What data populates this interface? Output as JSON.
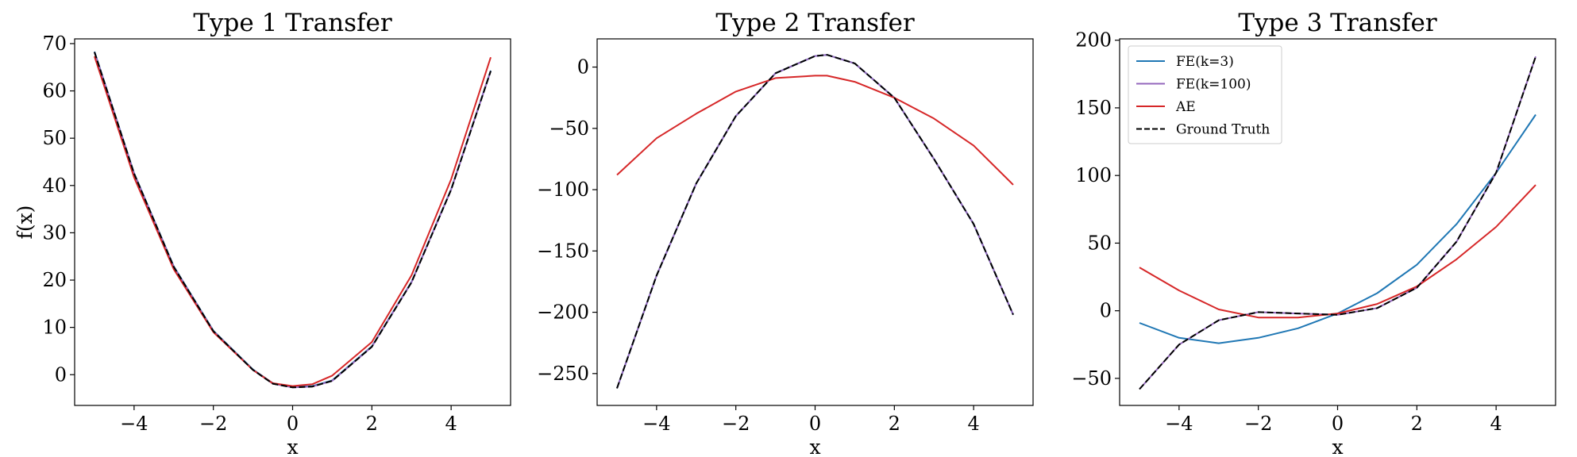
{
  "chart_data": [
    {
      "type": "line",
      "title": "Type 1 Transfer",
      "xlabel": "x",
      "ylabel": "f(x)",
      "xlim": [
        -5.5,
        5.5
      ],
      "ylim": [
        -6.5,
        71
      ],
      "xticks": [
        -4,
        -2,
        0,
        2,
        4
      ],
      "xtick_labels": [
        "−4",
        "−2",
        "0",
        "2",
        "4"
      ],
      "yticks": [
        0,
        10,
        20,
        30,
        40,
        50,
        60,
        70
      ],
      "ytick_labels": [
        "0",
        "10",
        "20",
        "30",
        "40",
        "50",
        "60",
        "70"
      ],
      "x": [
        -5,
        -4,
        -3,
        -2,
        -1,
        -0.5,
        0,
        0.5,
        1,
        2,
        3,
        4,
        5
      ],
      "series": [
        {
          "name": "FE(k=3)",
          "color": "#1f77b4",
          "dashed": false,
          "values": [
            68.3,
            42.6,
            22.9,
            9.3,
            1.1,
            -1.8,
            -2.6,
            -2.4,
            -1.2,
            6.0,
            19.6,
            39.2,
            64.3
          ]
        },
        {
          "name": "FE(k=100)",
          "color": "#9467bd",
          "dashed": false,
          "values": [
            68.2,
            42.5,
            22.8,
            9.2,
            1.0,
            -1.9,
            -2.7,
            -2.5,
            -1.3,
            5.9,
            19.5,
            39.1,
            64.2
          ]
        },
        {
          "name": "AE",
          "color": "#d62728",
          "dashed": false,
          "values": [
            67.3,
            41.7,
            22.3,
            9.0,
            1.0,
            -1.8,
            -2.4,
            -2.0,
            -0.2,
            6.9,
            21.0,
            41.3,
            67.1
          ]
        },
        {
          "name": "Ground Truth",
          "color": "#000000",
          "dashed": true,
          "values": [
            68.2,
            42.5,
            22.8,
            9.2,
            1.0,
            -1.9,
            -2.7,
            -2.5,
            -1.3,
            5.9,
            19.5,
            39.1,
            64.2
          ]
        }
      ],
      "legend": null
    },
    {
      "type": "line",
      "title": "Type 2 Transfer",
      "xlabel": "x",
      "ylabel": "",
      "xlim": [
        -5.5,
        5.5
      ],
      "ylim": [
        -276,
        23
      ],
      "xticks": [
        -4,
        -2,
        0,
        2,
        4
      ],
      "xtick_labels": [
        "−4",
        "−2",
        "0",
        "2",
        "4"
      ],
      "yticks": [
        -250,
        -200,
        -150,
        -100,
        -50,
        0
      ],
      "ytick_labels": [
        "−250",
        "−200",
        "−150",
        "−100",
        "−50",
        "0"
      ],
      "x": [
        -5,
        -4,
        -3,
        -2,
        -1,
        0,
        0.3,
        1,
        2,
        3,
        4,
        5
      ],
      "series": [
        {
          "name": "FE(k=3)",
          "color": "#1f77b4",
          "dashed": false,
          "values": [
            -262,
            -170,
            -95,
            -40,
            -5,
            9,
            10,
            3,
            -25,
            -75,
            -128,
            -202
          ]
        },
        {
          "name": "FE(k=100)",
          "color": "#9467bd",
          "dashed": false,
          "values": [
            -262,
            -170,
            -95,
            -40,
            -5,
            9,
            10,
            3,
            -25,
            -75,
            -128,
            -202
          ]
        },
        {
          "name": "AE",
          "color": "#d62728",
          "dashed": false,
          "values": [
            -88,
            -58,
            -38,
            -20,
            -9,
            -7,
            -7,
            -12,
            -25,
            -42,
            -64,
            -96
          ]
        },
        {
          "name": "Ground Truth",
          "color": "#000000",
          "dashed": true,
          "values": [
            -262,
            -170,
            -95,
            -40,
            -5,
            9,
            10,
            3,
            -25,
            -75,
            -128,
            -202
          ]
        }
      ],
      "legend": null
    },
    {
      "type": "line",
      "title": "Type 3 Transfer",
      "xlabel": "x",
      "ylabel": "",
      "xlim": [
        -5.5,
        5.5
      ],
      "ylim": [
        -70,
        201
      ],
      "xticks": [
        -4,
        -2,
        0,
        2,
        4
      ],
      "xtick_labels": [
        "−4",
        "−2",
        "0",
        "2",
        "4"
      ],
      "yticks": [
        -50,
        0,
        50,
        100,
        150,
        200
      ],
      "ytick_labels": [
        "−50",
        "0",
        "50",
        "100",
        "150",
        "200"
      ],
      "x": [
        -5,
        -4,
        -3,
        -2,
        -1,
        0,
        1,
        2,
        3,
        4,
        5
      ],
      "series": [
        {
          "name": "FE(k=3)",
          "color": "#1f77b4",
          "dashed": false,
          "values": [
            -9,
            -20,
            -24,
            -20,
            -13,
            -2,
            13,
            34,
            64,
            102,
            145
          ]
        },
        {
          "name": "FE(k=100)",
          "color": "#9467bd",
          "dashed": false,
          "values": [
            -58,
            -25,
            -7,
            -1,
            -2,
            -3,
            2,
            17,
            51,
            102,
            188
          ]
        },
        {
          "name": "AE",
          "color": "#d62728",
          "dashed": false,
          "values": [
            32,
            15,
            1,
            -5,
            -5,
            -2,
            5,
            18,
            38,
            62,
            93
          ]
        },
        {
          "name": "Ground Truth",
          "color": "#000000",
          "dashed": true,
          "values": [
            -58,
            -25,
            -7,
            -1,
            -2,
            -3,
            2,
            17,
            51,
            102,
            188
          ]
        }
      ],
      "legend": {
        "position": "upper-left",
        "entries": [
          {
            "label": "FE(k=3)",
            "color": "#1f77b4",
            "dashed": false
          },
          {
            "label": "FE(k=100)",
            "color": "#9467bd",
            "dashed": false
          },
          {
            "label": "AE",
            "color": "#d62728",
            "dashed": false
          },
          {
            "label": "Ground Truth",
            "color": "#000000",
            "dashed": true
          }
        ]
      }
    }
  ]
}
